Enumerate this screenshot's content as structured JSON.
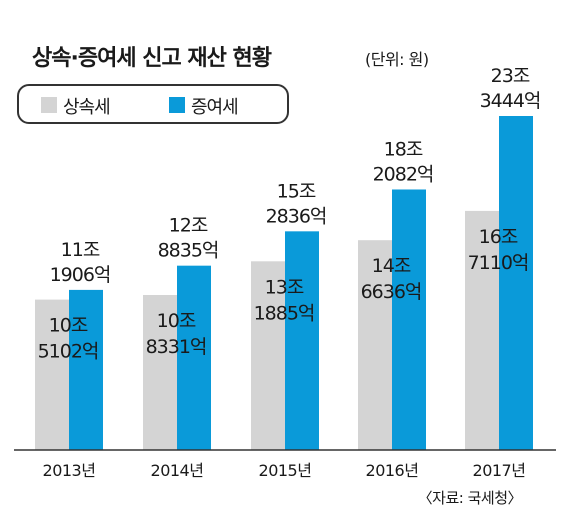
{
  "title": "상속·증여세 신고 재산 현황",
  "unit": "(단위: 원)",
  "source": "〈자료: 국세청〉",
  "chart_data": {
    "type": "bar",
    "categories": [
      "2013년",
      "2014년",
      "2015년",
      "2016년",
      "2017년"
    ],
    "series": [
      {
        "name": "상속세",
        "color": "#d4d4d4",
        "values": [
          10.5102,
          10.8331,
          13.1885,
          14.6636,
          16.711
        ],
        "labels": [
          [
            "10조",
            "5102억"
          ],
          [
            "10조",
            "8331억"
          ],
          [
            "13조",
            "1885억"
          ],
          [
            "14조",
            "6636억"
          ],
          [
            "16조",
            "7110억"
          ]
        ]
      },
      {
        "name": "증여세",
        "color": "#0a9ad9",
        "values": [
          11.1906,
          12.8835,
          15.2836,
          18.2082,
          23.3444
        ],
        "labels": [
          [
            "11조",
            "1906억"
          ],
          [
            "12조",
            "8835억"
          ],
          [
            "15조",
            "2836억"
          ],
          [
            "18조",
            "2082억"
          ],
          [
            "23조",
            "3444억"
          ]
        ]
      }
    ],
    "value_unit": "조 원",
    "ylim": [
      0,
      23.3444
    ],
    "grid": false,
    "legend": "top-left"
  }
}
